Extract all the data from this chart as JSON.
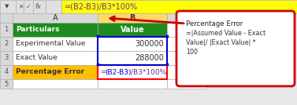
{
  "formula_bar_text": "=(B2-B3)/B3*100%",
  "callout_title": "Percentage Error",
  "callout_body": "=|Assumed Value - Exact\nValue|/ |Exact Value| *\n100",
  "header_bg": "#1e8c1e",
  "header_text": "#ffffff",
  "row_a_highlight": "#ffc000",
  "formula_bar_bg": "#ffff00",
  "row4_b_border": "#ff0000",
  "cell_bg": "#ffffff",
  "callout_border": "#cc0000",
  "callout_bg": "#ffffff",
  "col_b_header_bg": "#ffd966",
  "blue_border": "#0000cc",
  "toolbar_bg": "#f0f0f0",
  "grid_bg": "#d9d9d9",
  "fig_bg": "#e8e8e8"
}
